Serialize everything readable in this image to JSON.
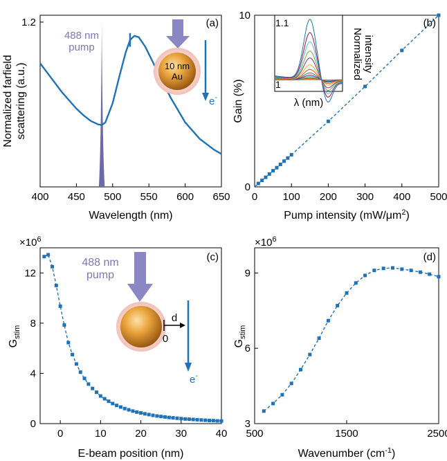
{
  "colors": {
    "line": "#1f72b8",
    "pump": "#7a78b6",
    "particle_outer": "#f4c9c2",
    "particle_core": "#e9a23b",
    "axis": "#000000"
  },
  "chart_data": [
    {
      "id": "a",
      "panel_label": "(a)",
      "type": "line",
      "xlabel": "Wavelength (nm)",
      "ylabel_lines": [
        "Normalized farfield",
        "scattering (a.u.)"
      ],
      "xlim": [
        400,
        650
      ],
      "ylim": [
        0,
        1.25
      ],
      "xticks": [
        400,
        450,
        500,
        550,
        600,
        650
      ],
      "xtick_labels": [
        "400",
        "450",
        "500",
        "550",
        "600",
        "650"
      ],
      "ytick_labels": [
        "1.2"
      ],
      "ytick_values": [
        1.2
      ],
      "series": [
        {
          "x": [
            400,
            410,
            420,
            430,
            440,
            450,
            460,
            470,
            480,
            485,
            490,
            500,
            510,
            518,
            524,
            530,
            536,
            545,
            560,
            580,
            600,
            620,
            640,
            650
          ],
          "y": [
            0.9,
            0.83,
            0.76,
            0.69,
            0.63,
            0.57,
            0.52,
            0.48,
            0.455,
            0.45,
            0.47,
            0.61,
            0.82,
            0.98,
            1.07,
            1.1,
            1.09,
            1.02,
            0.86,
            0.65,
            0.47,
            0.35,
            0.27,
            0.24
          ]
        }
      ],
      "pump_peak": {
        "center": 485,
        "width_nm": 8,
        "label": [
          "488 nm",
          "pump"
        ]
      },
      "spike": {
        "x": 524,
        "y0": 1.02,
        "y1": 1.12
      },
      "particle_labels": [
        "10 nm",
        "Au"
      ],
      "electron_label": "e",
      "electron_sup": "-"
    },
    {
      "id": "b",
      "panel_label": "(b)",
      "type": "line",
      "xlabel": "Pump intensity (mW/μm",
      "xlabel_sup": "2",
      "xlabel_end": ")",
      "ylabel": "Gain (%)",
      "xlim": [
        0,
        500
      ],
      "ylim": [
        0,
        10
      ],
      "xticks": [
        0,
        100,
        200,
        300,
        400,
        500
      ],
      "xtick_labels": [
        "0",
        "100",
        "200",
        "300",
        "400",
        "500"
      ],
      "yticks": [
        0,
        10
      ],
      "ytick_labels": [
        "0",
        "10"
      ],
      "series": [
        {
          "x": [
            10,
            20,
            30,
            40,
            50,
            60,
            70,
            80,
            90,
            100,
            200,
            300,
            400,
            500
          ],
          "y": [
            0.2,
            0.38,
            0.56,
            0.75,
            0.94,
            1.12,
            1.31,
            1.5,
            1.68,
            1.87,
            3.82,
            5.85,
            7.95,
            10.0
          ]
        }
      ],
      "inset": {
        "xlabel": "λ (nm)",
        "ylabel_lines": [
          "Normalized",
          "intensity"
        ],
        "ytick_labels": [
          "1.1",
          "1"
        ],
        "ytick_values": [
          1.1,
          1.0
        ],
        "ylim": [
          0.98,
          1.112
        ],
        "peak_heights": [
          1.0005,
          1.001,
          1.002,
          1.003,
          1.004,
          1.006,
          1.008,
          1.012,
          1.018,
          1.026,
          1.038,
          1.05,
          1.066,
          1.082,
          1.105
        ],
        "colors": [
          "#1f72b8",
          "#d95319",
          "#edb120",
          "#7e2f8e",
          "#77ac30",
          "#4dbeee",
          "#a2142f",
          "#1f72b8",
          "#d95319",
          "#edb120",
          "#7e2f8e",
          "#77ac30",
          "#4dbeee",
          "#a2142f",
          "#1f72b8"
        ]
      }
    },
    {
      "id": "c",
      "panel_label": "(c)",
      "type": "line",
      "xlabel": "E-beam position (nm)",
      "ylabel": "G",
      "ylabel_sub": "stim",
      "multiplier": "×10",
      "multiplier_exp": "6",
      "xlim": [
        -5,
        40
      ],
      "ylim": [
        0,
        14
      ],
      "xticks": [
        0,
        10,
        20,
        30,
        40
      ],
      "xtick_labels": [
        "0",
        "10",
        "20",
        "30",
        "40"
      ],
      "yticks": [
        0,
        4,
        8,
        12
      ],
      "ytick_labels": [
        "0",
        "4",
        "8",
        "12"
      ],
      "series": [
        {
          "x": [
            -4,
            -3,
            -2,
            -1,
            0,
            1,
            2,
            3,
            4,
            5,
            6,
            7,
            8,
            9,
            10,
            11,
            12,
            13,
            14,
            15,
            16,
            17,
            18,
            19,
            20,
            21,
            22,
            23,
            24,
            25,
            26,
            27,
            28,
            29,
            30,
            31,
            32,
            33,
            34,
            35,
            36,
            37,
            38,
            39,
            40
          ],
          "y": [
            13.3,
            13.45,
            12.5,
            11.0,
            9.35,
            7.85,
            6.45,
            5.5,
            4.75,
            4.1,
            3.6,
            3.15,
            2.8,
            2.5,
            2.2,
            1.98,
            1.78,
            1.6,
            1.45,
            1.32,
            1.2,
            1.1,
            1.0,
            0.92,
            0.85,
            0.78,
            0.72,
            0.66,
            0.61,
            0.57,
            0.53,
            0.49,
            0.46,
            0.43,
            0.4,
            0.37,
            0.35,
            0.33,
            0.31,
            0.29,
            0.27,
            0.25,
            0.24,
            0.22,
            0.21
          ]
        }
      ],
      "pump_label": [
        "488 nm",
        "pump"
      ],
      "d_label": "d",
      "zero_label": "0",
      "electron_label": "e",
      "electron_sup": "-"
    },
    {
      "id": "d",
      "panel_label": "(d)",
      "type": "line",
      "xlabel": "Wavenumber (cm",
      "xlabel_sup": "-1",
      "xlabel_end": ")",
      "ylabel": "G",
      "ylabel_sub": "stim",
      "multiplier": "×10",
      "multiplier_exp": "6",
      "xlim": [
        500,
        2500
      ],
      "ylim": [
        3,
        10
      ],
      "xticks": [
        500,
        1500,
        2500
      ],
      "xtick_labels": [
        "500",
        "1500",
        "2500"
      ],
      "yticks": [
        3,
        6,
        9
      ],
      "ytick_labels": [
        "3",
        "6",
        "9"
      ],
      "series": [
        {
          "x": [
            600,
            700,
            800,
            900,
            1000,
            1100,
            1200,
            1300,
            1400,
            1500,
            1600,
            1700,
            1800,
            1900,
            2000,
            2100,
            2200,
            2300,
            2400,
            2500
          ],
          "y": [
            3.5,
            3.8,
            4.15,
            4.6,
            5.15,
            5.75,
            6.4,
            7.1,
            7.7,
            8.2,
            8.6,
            8.9,
            9.1,
            9.18,
            9.2,
            9.15,
            9.1,
            9.03,
            8.95,
            8.85
          ]
        }
      ]
    }
  ]
}
